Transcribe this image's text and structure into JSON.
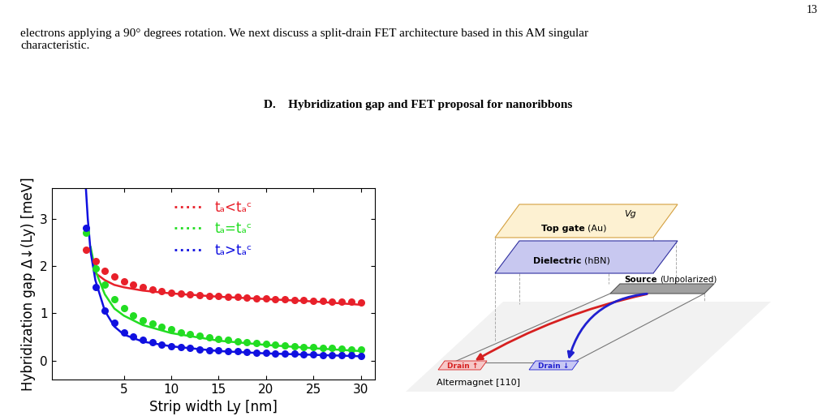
{
  "page": {
    "number": "13",
    "paragraph": [
      "electrons applying a 90° degrees rotation. We next discuss a split-drain FET architecture based in this AM singular",
      "characteristic."
    ],
    "section": {
      "number": "D.",
      "title": "Hybridization gap and FET proposal for nanoribbons"
    }
  },
  "chart_data": {
    "type": "scatter",
    "xlabel": "Strip width Ly [nm]",
    "ylabel": "Hybridization gap Δ↓(Ly) [meV]",
    "xlim": [
      -2.6,
      31.5
    ],
    "ylim": [
      -0.4,
      3.65
    ],
    "xticks": [
      5,
      10,
      15,
      20,
      25,
      30
    ],
    "yticks": [
      0,
      1,
      2,
      3
    ],
    "legend": "upper center",
    "series": [
      {
        "name": "tₐ<tₐᶜ",
        "color": "#e8202a",
        "marker": "circle",
        "x": [
          1,
          2,
          3,
          4,
          5,
          6,
          7,
          8,
          9,
          10,
          11,
          12,
          13,
          14,
          15,
          16,
          17,
          18,
          19,
          20,
          21,
          22,
          23,
          24,
          25,
          26,
          27,
          28,
          29,
          30
        ],
        "values": [
          2.35,
          2.1,
          1.9,
          1.78,
          1.68,
          1.6,
          1.55,
          1.5,
          1.47,
          1.44,
          1.42,
          1.4,
          1.38,
          1.37,
          1.36,
          1.35,
          1.34,
          1.33,
          1.32,
          1.31,
          1.3,
          1.29,
          1.28,
          1.28,
          1.27,
          1.26,
          1.25,
          1.25,
          1.24,
          1.23
        ],
        "fit": {
          "type": "line",
          "line_style": "solid",
          "x": [
            1.8,
            2,
            3,
            4,
            5,
            7,
            10,
            15,
            20,
            25,
            30
          ],
          "values": [
            2.0,
            1.85,
            1.7,
            1.6,
            1.55,
            1.48,
            1.42,
            1.35,
            1.3,
            1.25,
            1.18
          ]
        }
      },
      {
        "name": "tₐ=tₐᶜ",
        "color": "#22dd22",
        "marker": "circle",
        "x": [
          1,
          2,
          3,
          4,
          5,
          6,
          7,
          8,
          9,
          10,
          11,
          12,
          13,
          14,
          15,
          16,
          17,
          18,
          19,
          20,
          21,
          22,
          23,
          24,
          25,
          26,
          27,
          28,
          29,
          30
        ],
        "values": [
          2.7,
          1.95,
          1.6,
          1.3,
          1.1,
          0.95,
          0.85,
          0.78,
          0.72,
          0.66,
          0.6,
          0.56,
          0.52,
          0.49,
          0.46,
          0.43,
          0.41,
          0.39,
          0.37,
          0.35,
          0.33,
          0.32,
          0.3,
          0.29,
          0.28,
          0.27,
          0.26,
          0.25,
          0.24,
          0.23
        ],
        "fit": {
          "type": "line",
          "line_style": "solid",
          "x": [
            1.5,
            2,
            3,
            4,
            5,
            7,
            10,
            15,
            20,
            25,
            30
          ],
          "values": [
            2.4,
            1.9,
            1.4,
            1.1,
            0.95,
            0.75,
            0.58,
            0.42,
            0.33,
            0.26,
            0.2
          ]
        }
      },
      {
        "name": "tₐ>tₐᶜ",
        "color": "#1010e0",
        "marker": "circle",
        "x": [
          1,
          2,
          3,
          4,
          5,
          6,
          7,
          8,
          9,
          10,
          11,
          12,
          13,
          14,
          15,
          16,
          17,
          18,
          19,
          20,
          21,
          22,
          23,
          24,
          25,
          26,
          27,
          28,
          29,
          30
        ],
        "values": [
          2.8,
          1.55,
          1.05,
          0.8,
          0.6,
          0.5,
          0.43,
          0.38,
          0.33,
          0.3,
          0.28,
          0.26,
          0.24,
          0.22,
          0.21,
          0.2,
          0.19,
          0.18,
          0.17,
          0.16,
          0.15,
          0.15,
          0.14,
          0.13,
          0.13,
          0.12,
          0.12,
          0.11,
          0.11,
          0.1
        ],
        "fit": {
          "type": "line",
          "line_style": "solid",
          "x": [
            1,
            1.2,
            1.5,
            2,
            3,
            4,
            5,
            7,
            10,
            15,
            20,
            25,
            30
          ],
          "values": [
            3.65,
            3.0,
            2.3,
            1.7,
            1.05,
            0.72,
            0.55,
            0.4,
            0.3,
            0.2,
            0.15,
            0.12,
            0.09
          ]
        }
      }
    ]
  },
  "diagram": {
    "top_gate": {
      "voltage": "Vg",
      "name": "Top gate",
      "material": "(Au)"
    },
    "dielectric": {
      "name": "Dielectric",
      "material": "(hBN)"
    },
    "source": {
      "name": "Source",
      "note": "(Unpolarized)"
    },
    "drains": [
      {
        "label": "Drain ↑",
        "color": "#d62020"
      },
      {
        "label": "Drain ↓",
        "color": "#2020d0"
      }
    ],
    "substrate": "Altermagnet [110]"
  }
}
